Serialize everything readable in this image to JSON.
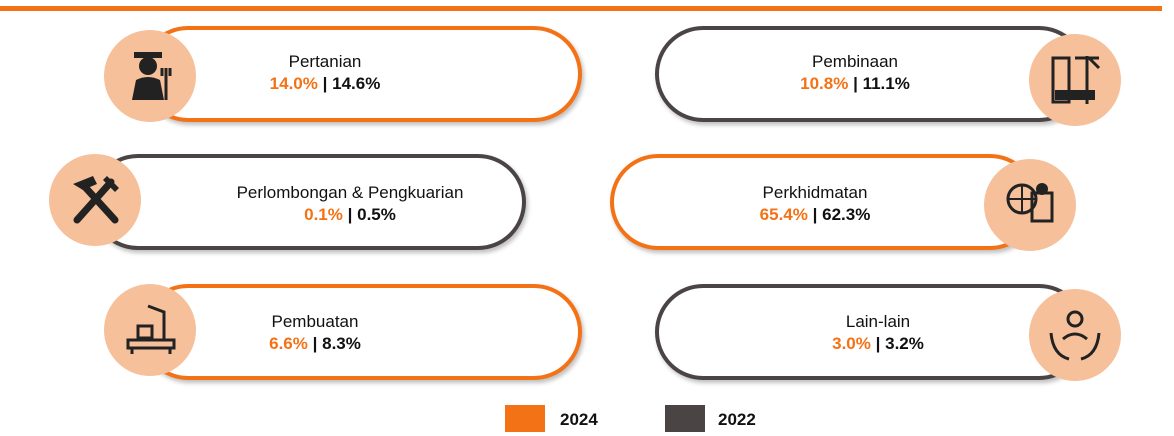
{
  "sectors": [
    {
      "label": "Pertanian",
      "value_2024": "14.0%",
      "value_2022": "14.6%"
    },
    {
      "label": "Perlombongan & Pengkuarian",
      "value_2024": "0.1%",
      "value_2022": "0.5%"
    },
    {
      "label": "Pembuatan",
      "value_2024": "6.6%",
      "value_2022": "8.3%"
    },
    {
      "label": "Pembinaan",
      "value_2024": "10.8%",
      "value_2022": "11.1%"
    },
    {
      "label": "Perkhidmatan",
      "value_2024": "65.4%",
      "value_2022": "62.3%"
    },
    {
      "label": "Lain-lain",
      "value_2024": "3.0%",
      "value_2022": "3.2%"
    }
  ],
  "separator": "|",
  "legend": [
    {
      "label": "2024",
      "color": "#f47216"
    },
    {
      "label": "2022",
      "color": "#4a4444"
    }
  ]
}
